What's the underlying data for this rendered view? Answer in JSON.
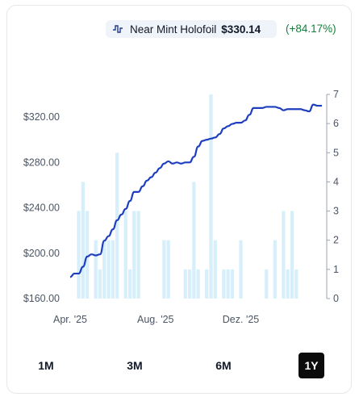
{
  "legend": {
    "series_icon": "line-chart-icon",
    "name": "Near Mint Holofoil",
    "price": "$330.14",
    "change": "(+84.17%)",
    "line_color": "#1e40af",
    "change_color": "#15803d"
  },
  "ranges": [
    {
      "label": "1M",
      "active": false
    },
    {
      "label": "3M",
      "active": false
    },
    {
      "label": "6M",
      "active": false
    },
    {
      "label": "1Y",
      "active": true
    }
  ],
  "chart_data": {
    "type": "line",
    "series": [
      {
        "name": "Near Mint Holofoil",
        "axis": "left",
        "color": "#1d3fbf",
        "points": [
          [
            0,
            179
          ],
          [
            1,
            182
          ],
          [
            2,
            182
          ],
          [
            3,
            188
          ],
          [
            4,
            197
          ],
          [
            5,
            199
          ],
          [
            6,
            198
          ],
          [
            7,
            199
          ],
          [
            8,
            211
          ],
          [
            9,
            215
          ],
          [
            10,
            221
          ],
          [
            11,
            229
          ],
          [
            12,
            234
          ],
          [
            13,
            239
          ],
          [
            14,
            246
          ],
          [
            15,
            254
          ],
          [
            16,
            254
          ],
          [
            17,
            259
          ],
          [
            18,
            264
          ],
          [
            19,
            267
          ],
          [
            20,
            271
          ],
          [
            21,
            275
          ],
          [
            22,
            279
          ],
          [
            23,
            281
          ],
          [
            24,
            279
          ],
          [
            25,
            280
          ],
          [
            26,
            279
          ],
          [
            27,
            280
          ],
          [
            28,
            280
          ],
          [
            29,
            285
          ],
          [
            30,
            294
          ],
          [
            31,
            299
          ],
          [
            32,
            300
          ],
          [
            33,
            301
          ],
          [
            34,
            302
          ],
          [
            35,
            305
          ],
          [
            36,
            310
          ],
          [
            37,
            312
          ],
          [
            38,
            314
          ],
          [
            39,
            315
          ],
          [
            40,
            315
          ],
          [
            41,
            317
          ],
          [
            42,
            322
          ],
          [
            43,
            328
          ],
          [
            44,
            328
          ],
          [
            45,
            328
          ],
          [
            46,
            329
          ],
          [
            47,
            329
          ],
          [
            48,
            329
          ],
          [
            49,
            328
          ],
          [
            50,
            326
          ],
          [
            51,
            327
          ],
          [
            52,
            327
          ],
          [
            53,
            327
          ],
          [
            54,
            327
          ],
          [
            55,
            326
          ],
          [
            56,
            325
          ],
          [
            57,
            331
          ],
          [
            58,
            330
          ],
          [
            59,
            330
          ]
        ]
      },
      {
        "name": "Volume",
        "type": "bar",
        "axis": "right",
        "color": "#d6effb",
        "values": [
          0,
          0,
          3,
          4,
          3,
          0,
          2,
          1,
          2,
          2,
          2,
          5,
          0,
          3,
          1,
          3,
          3,
          0,
          0,
          0,
          0,
          0,
          2,
          2,
          0,
          0,
          0,
          1,
          1,
          4,
          1,
          0,
          1,
          7,
          2,
          0,
          1,
          1,
          1,
          0,
          2,
          0,
          0,
          0,
          0,
          0,
          1,
          0,
          2,
          0,
          3,
          1,
          3,
          1,
          0,
          0,
          0,
          0,
          0,
          0
        ]
      }
    ],
    "x": {
      "ticks": [
        "Apr. '25",
        "Aug. '25",
        "Dez. '25"
      ],
      "tick_index": [
        0,
        20,
        40
      ]
    },
    "ylim_left": [
      160,
      340
    ],
    "yticks_left": [
      "$160.00",
      "$200.00",
      "$240.00",
      "$280.00",
      "$320.00"
    ],
    "yticks_left_values": [
      160,
      200,
      240,
      280,
      320
    ],
    "ylim_right": [
      0,
      7
    ],
    "yticks_right": [
      "0",
      "1",
      "2",
      "3",
      "4",
      "5",
      "6",
      "7"
    ],
    "grid": false,
    "legend_position": "top-right"
  }
}
